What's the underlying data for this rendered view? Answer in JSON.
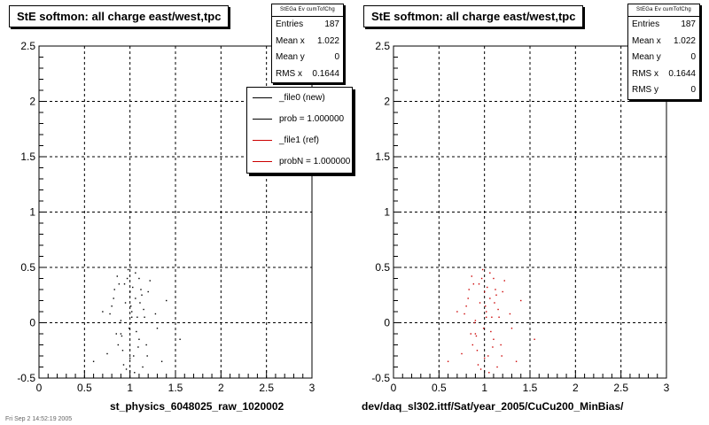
{
  "panels": [
    {
      "title": "StE softmon: all charge east/west,tpc",
      "stats": {
        "header": "StEGa Ev cumTofChg",
        "rows": [
          {
            "label": "Entries",
            "value": "187"
          },
          {
            "label": "Mean x",
            "value": "1.022"
          },
          {
            "label": "Mean y",
            "value": "0"
          },
          {
            "label": "RMS x",
            "value": "0.1644"
          }
        ]
      },
      "legend": [
        {
          "label": "_file0 (new)",
          "color": "#000000"
        },
        {
          "label": "prob = 1.000000",
          "color": "#000000"
        },
        {
          "label": "_file1 (ref)",
          "color": "#cc0000"
        },
        {
          "label": "probN = 1.000000",
          "color": "#cc0000"
        }
      ],
      "xtitle": "st_physics_6048025_raw_1020002"
    },
    {
      "title": "StE softmon: all charge east/west,tpc",
      "stats": {
        "header": "StEGa Ev cumTofChg",
        "rows": [
          {
            "label": "Entries",
            "value": "187"
          },
          {
            "label": "Mean x",
            "value": "1.022"
          },
          {
            "label": "Mean y",
            "value": "0"
          },
          {
            "label": "RMS x",
            "value": "0.1644"
          },
          {
            "label": "RMS y",
            "value": "0"
          }
        ]
      },
      "xtitle": "dev/daq_sl302.ittf/Sat/year_2005/CuCu200_MinBias/"
    }
  ],
  "footer": "Fri Sep 2 14:52:19 2005",
  "chart_data": [
    {
      "type": "scatter",
      "title": "StE softmon: all charge east/west,tpc",
      "xlabel": "st_physics_6048025_raw_1020002",
      "ylabel": "",
      "xlim": [
        0,
        3
      ],
      "ylim": [
        -0.5,
        2.5
      ],
      "xticks": [
        "0",
        "0.5",
        "1",
        "1.5",
        "2",
        "2.5",
        "3"
      ],
      "yticks": [
        "-0.5",
        "0",
        "0.5",
        "1",
        "1.5",
        "2",
        "2.5"
      ],
      "grid": true,
      "legend_position": "top-right",
      "series": [
        {
          "name": "_file0 (new)",
          "color": "#000000",
          "x": [
            0.78,
            0.82,
            0.85,
            0.88,
            0.9,
            0.92,
            0.95,
            0.97,
            0.99,
            1.0,
            1.02,
            1.04,
            1.06,
            1.08,
            1.1,
            1.12,
            1.15,
            1.18,
            1.22,
            1.28,
            1.35,
            0.6,
            0.7,
            1.4,
            1.55,
            0.75,
            0.86,
            0.93,
            1.01,
            1.07,
            1.13,
            0.89,
            0.96,
            1.03,
            1.09,
            1.16,
            0.83,
            0.91,
            0.98,
            1.05,
            1.11,
            1.19,
            0.87,
            0.94,
            1.0,
            1.06,
            1.14,
            0.8,
            0.9,
            1.02,
            1.1,
            1.2,
            1.3
          ],
          "y": [
            0.08,
            0.22,
            -0.1,
            0.35,
            0.02,
            -0.25,
            0.18,
            0.4,
            -0.05,
            0.28,
            0.1,
            -0.3,
            0.45,
            0.05,
            -0.15,
            0.3,
            0.12,
            -0.2,
            0.38,
            0.08,
            -0.35,
            -0.35,
            0.1,
            0.2,
            -0.15,
            -0.28,
            0.42,
            -0.38,
            0.15,
            -0.08,
            0.25,
            0.0,
            -0.42,
            0.32,
            -0.22,
            0.05,
            0.3,
            -0.12,
            0.48,
            -0.45,
            0.18,
            -0.3,
            -0.2,
            0.35,
            -0.32,
            0.22,
            -0.4,
            0.15,
            -0.1,
            0.05,
            0.4,
            0.28,
            -0.05
          ]
        },
        {
          "name": "_file1 (ref)",
          "color": "#cc0000",
          "x": [],
          "y": []
        }
      ]
    },
    {
      "type": "scatter",
      "title": "StE softmon: all charge east/west,tpc",
      "xlabel": "dev/daq_sl302.ittf/Sat/year_2005/CuCu200_MinBias/",
      "ylabel": "",
      "xlim": [
        0,
        3
      ],
      "ylim": [
        -0.5,
        2.5
      ],
      "xticks": [
        "0",
        "0.5",
        "1",
        "1.5",
        "2",
        "2.5",
        "3"
      ],
      "yticks": [
        "-0.5",
        "0",
        "0.5",
        "1",
        "1.5",
        "2",
        "2.5"
      ],
      "grid": true,
      "series": [
        {
          "name": "",
          "color": "#cc0000",
          "x": [
            0.78,
            0.82,
            0.85,
            0.88,
            0.9,
            0.92,
            0.95,
            0.97,
            0.99,
            1.0,
            1.02,
            1.04,
            1.06,
            1.08,
            1.1,
            1.12,
            1.15,
            1.18,
            1.22,
            1.28,
            1.35,
            0.6,
            0.7,
            1.4,
            1.55,
            0.75,
            0.86,
            0.93,
            1.01,
            1.07,
            1.13,
            0.89,
            0.96,
            1.03,
            1.09,
            1.16,
            0.83,
            0.91,
            0.98,
            1.05,
            1.11,
            1.19,
            0.87,
            0.94,
            1.0,
            1.06,
            1.14,
            0.8,
            0.9,
            1.02,
            1.1,
            1.2,
            1.3
          ],
          "y": [
            0.08,
            0.22,
            -0.1,
            0.35,
            0.02,
            -0.25,
            0.18,
            0.4,
            -0.05,
            0.28,
            0.1,
            -0.3,
            0.45,
            0.05,
            -0.15,
            0.3,
            0.12,
            -0.2,
            0.38,
            0.08,
            -0.35,
            -0.35,
            0.1,
            0.2,
            -0.15,
            -0.28,
            0.42,
            -0.38,
            0.15,
            -0.08,
            0.25,
            0.0,
            -0.42,
            0.32,
            -0.22,
            0.05,
            0.3,
            -0.12,
            0.48,
            -0.45,
            0.18,
            -0.3,
            -0.2,
            0.35,
            -0.32,
            0.22,
            -0.4,
            0.15,
            -0.1,
            0.05,
            0.4,
            0.28,
            -0.05
          ]
        }
      ]
    }
  ]
}
